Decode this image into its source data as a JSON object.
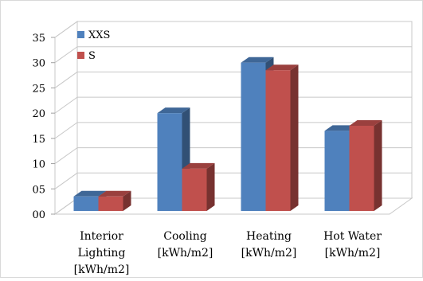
{
  "chart_data": {
    "type": "bar",
    "categories": [
      [
        "Interior",
        "Lighting",
        "[kWh/m2]"
      ],
      [
        "Cooling",
        "[kWh/m2]"
      ],
      [
        "Heating",
        "[kWh/m2]"
      ],
      [
        "Hot Water",
        "[kWh/m2]"
      ]
    ],
    "series": [
      {
        "name": "XXS",
        "values": [
          3.5,
          20,
          30,
          16.5
        ],
        "color": "#4f81bd"
      },
      {
        "name": "S",
        "values": [
          3.5,
          9,
          28.5,
          17.5
        ],
        "color": "#c0504d"
      }
    ],
    "ylim": [
      0,
      35
    ],
    "yticks": [
      "00",
      "05",
      "10",
      "15",
      "20",
      "25",
      "30",
      "35"
    ],
    "grid": true,
    "legend": "top-left",
    "title": "",
    "xlabel": "",
    "ylabel": ""
  }
}
